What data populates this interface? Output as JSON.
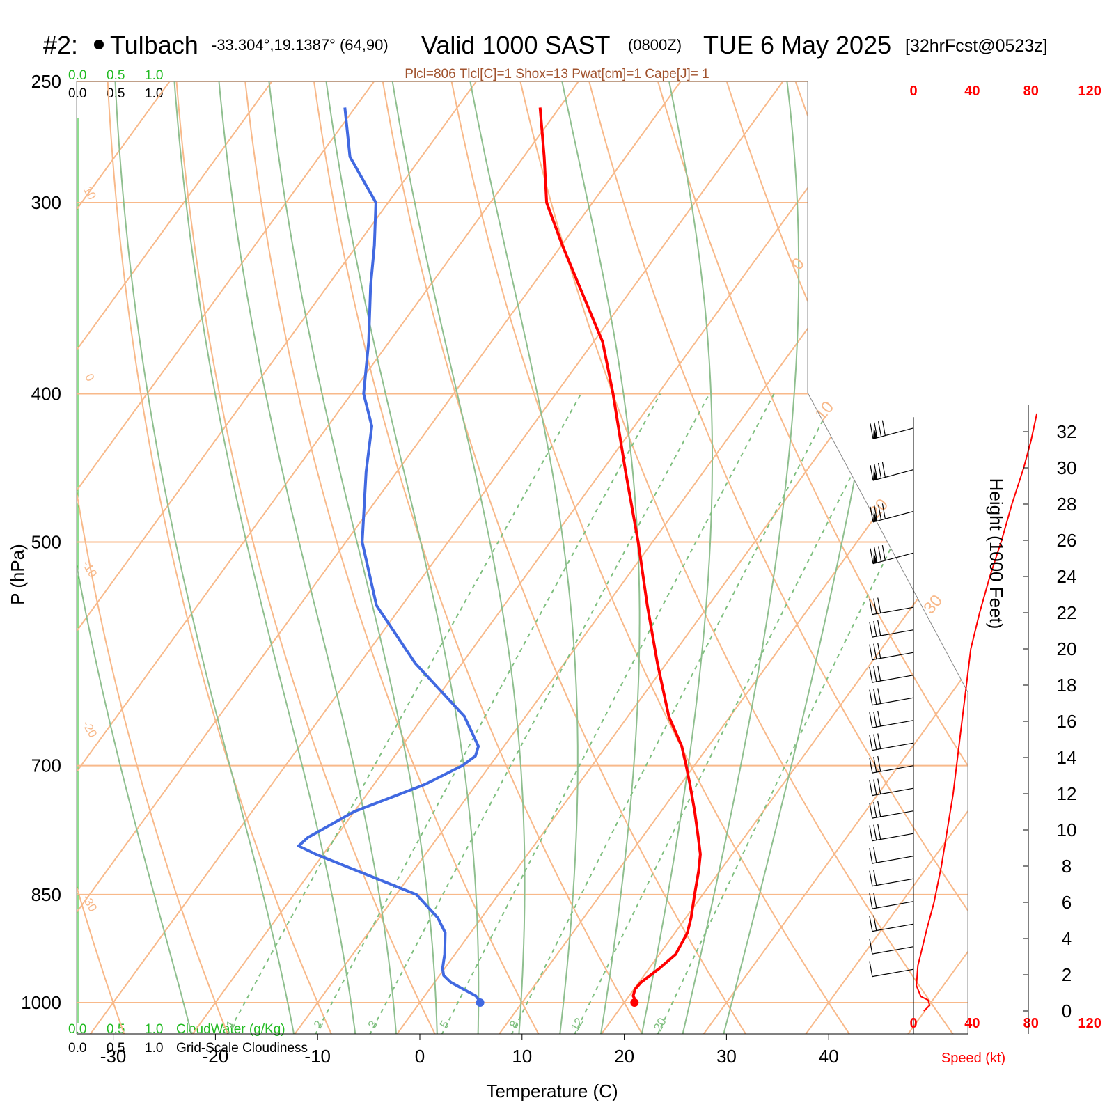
{
  "header": {
    "station_prefix": "#2:",
    "station_name": "Tulbach",
    "coords": "-33.304°,19.1387° (64,90)",
    "valid_main": "Valid 1000 SAST",
    "valid_z": "(0800Z)",
    "date": "TUE 6 May 2025",
    "forecast": "[32hrFcst@0523z]"
  },
  "indices": "Plcl=806 Tlcl[C]=1 Shox=13 Pwat[cm]=1 Cape[J]= 1",
  "colors": {
    "temperature": "#ff0000",
    "dewpoint": "#4169e1",
    "isotherm": "#f8b98a",
    "dry_adiabat": "#f8b98a",
    "moist_adiabat": "#8fbf8f",
    "mixing_ratio": "#7fbf7f",
    "cloud_scale": "#22bb22",
    "indices_text": "#a0522d",
    "speed_axis": "#ff0000"
  },
  "cloud_scale": {
    "top_green": [
      "0.0",
      "0.5",
      "1.0"
    ],
    "top_black": [
      "0.0",
      "0.5",
      "1.0"
    ],
    "bottom_green": [
      "0.0",
      "0.5",
      "1.0"
    ],
    "bottom_black": [
      "0.0",
      "0.5",
      "1.0"
    ],
    "cloudwater_label": "CloudWater (g/Kg)",
    "cloudiness_label": "Grid-Scale Cloudiness"
  },
  "chart_data": {
    "type": "line",
    "subtype": "skew-T log-P sounding",
    "xlabel": "Temperature (C)",
    "ylabel": "P (hPa)",
    "xlim_at_1000hPa": [
      -34,
      48
    ],
    "pressure_range_hPa": [
      250,
      1050
    ],
    "x_ticks": [
      "-30",
      "-20",
      "-10",
      "0",
      "10",
      "20",
      "30",
      "40"
    ],
    "pressure_ticks": [
      "250",
      "300",
      "400",
      "500",
      "700",
      "850",
      "1000"
    ],
    "pressure_values": [
      250,
      300,
      400,
      500,
      700,
      850,
      1000
    ],
    "series": [
      {
        "role": "temperature",
        "points": [
          [
            1000,
            21.0
          ],
          [
            995,
            20.8
          ],
          [
            990,
            20.4
          ],
          [
            980,
            20.1
          ],
          [
            970,
            20.2
          ],
          [
            960,
            20.6
          ],
          [
            950,
            21.0
          ],
          [
            940,
            21.3
          ],
          [
            930,
            21.6
          ],
          [
            900,
            21.2
          ],
          [
            880,
            20.5
          ],
          [
            850,
            19.2
          ],
          [
            820,
            17.9
          ],
          [
            800,
            16.9
          ],
          [
            780,
            15.5
          ],
          [
            750,
            13.3
          ],
          [
            720,
            10.9
          ],
          [
            700,
            9.2
          ],
          [
            680,
            7.4
          ],
          [
            650,
            4.0
          ],
          [
            600,
            -0.9
          ],
          [
            550,
            -6.0
          ],
          [
            500,
            -11.4
          ],
          [
            450,
            -17.6
          ],
          [
            400,
            -24.4
          ],
          [
            370,
            -29.1
          ],
          [
            340,
            -35.4
          ],
          [
            320,
            -39.9
          ],
          [
            300,
            -44.5
          ],
          [
            280,
            -48.0
          ],
          [
            260,
            -51.9
          ]
        ]
      },
      {
        "role": "dewpoint",
        "points": [
          [
            1000,
            5.9
          ],
          [
            995,
            5.5
          ],
          [
            990,
            5.0
          ],
          [
            980,
            3.3
          ],
          [
            970,
            1.6
          ],
          [
            960,
            0.4
          ],
          [
            950,
            -0.2
          ],
          [
            940,
            -0.6
          ],
          [
            930,
            -1.0
          ],
          [
            900,
            -2.5
          ],
          [
            880,
            -4.3
          ],
          [
            850,
            -8.0
          ],
          [
            800,
            -20.7
          ],
          [
            790,
            -23.0
          ],
          [
            780,
            -22.7
          ],
          [
            750,
            -20.0
          ],
          [
            720,
            -15.0
          ],
          [
            700,
            -12.7
          ],
          [
            690,
            -12.1
          ],
          [
            680,
            -12.5
          ],
          [
            650,
            -16.0
          ],
          [
            600,
            -24.6
          ],
          [
            550,
            -32.5
          ],
          [
            500,
            -38.4
          ],
          [
            450,
            -43.0
          ],
          [
            420,
            -45.7
          ],
          [
            400,
            -48.8
          ],
          [
            370,
            -52.0
          ],
          [
            340,
            -55.8
          ],
          [
            320,
            -58.3
          ],
          [
            300,
            -61.2
          ],
          [
            280,
            -67.0
          ],
          [
            260,
            -71.0
          ]
        ]
      }
    ],
    "isotherm_labels": [
      "10",
      "0",
      "-10",
      "-20",
      "-30",
      "0",
      "10",
      "20",
      "30"
    ],
    "mixing_ratio_labels": [
      "1",
      "2",
      "3",
      "5",
      "8",
      "12",
      "20"
    ],
    "mixing_ratio_values_gkg": [
      1,
      2,
      3,
      5,
      8,
      12,
      20
    ],
    "wind_speed_axis": {
      "label": "Speed (kt)",
      "ticks": [
        "0",
        "40",
        "80",
        "120"
      ],
      "tick_values": [
        0,
        40,
        80,
        120
      ],
      "profile_height_kft_speed_kt": [
        [
          0.0,
          7
        ],
        [
          0.3,
          11
        ],
        [
          0.6,
          10
        ],
        [
          0.8,
          5
        ],
        [
          1.4,
          2
        ],
        [
          2.5,
          3
        ],
        [
          3.5,
          6
        ],
        [
          4.5,
          9
        ],
        [
          6,
          14
        ],
        [
          8,
          19
        ],
        [
          10,
          23
        ],
        [
          12,
          27
        ],
        [
          14,
          30
        ],
        [
          16,
          33
        ],
        [
          18,
          36
        ],
        [
          20,
          39
        ],
        [
          22,
          45
        ],
        [
          24,
          52
        ],
        [
          26,
          60
        ],
        [
          28,
          67
        ],
        [
          30,
          75
        ],
        [
          31.5,
          80
        ],
        [
          33,
          84
        ]
      ]
    },
    "height_axis": {
      "label": "Height (1000 Feet)",
      "ticks": [
        "0",
        "2",
        "4",
        "6",
        "8",
        "10",
        "12",
        "14",
        "16",
        "18",
        "20",
        "22",
        "24",
        "26",
        "28",
        "30",
        "32"
      ]
    }
  }
}
